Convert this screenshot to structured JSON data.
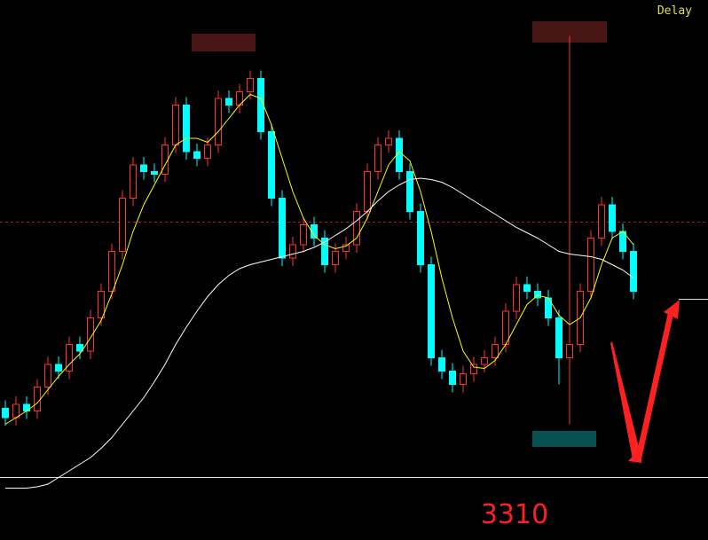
{
  "chart_data": {
    "type": "candlestick",
    "status": "Delay",
    "annotation": "3310",
    "ylim": [
      3263,
      3669
    ],
    "open": [
      3362,
      3355,
      3365,
      3360,
      3378,
      3395,
      3390,
      3410,
      3405,
      3430,
      3450,
      3480,
      3520,
      3545,
      3540,
      3538,
      3560,
      3590,
      3555,
      3550,
      3560,
      3595,
      3590,
      3600,
      3610,
      3570,
      3520,
      3475,
      3485,
      3500,
      3490,
      3470,
      3480,
      3485,
      3510,
      3540,
      3560,
      3565,
      3540,
      3510,
      3470,
      3400,
      3390,
      3380,
      3388,
      3395,
      3400,
      3410,
      3435,
      3455,
      3450,
      3445,
      3430,
      3400,
      3410,
      3450,
      3490,
      3515,
      3495,
      3480
    ],
    "close": [
      3355,
      3365,
      3360,
      3378,
      3395,
      3390,
      3410,
      3405,
      3430,
      3450,
      3480,
      3520,
      3545,
      3540,
      3538,
      3560,
      3590,
      3555,
      3550,
      3560,
      3595,
      3590,
      3600,
      3610,
      3570,
      3520,
      3475,
      3485,
      3500,
      3490,
      3470,
      3480,
      3485,
      3510,
      3540,
      3560,
      3565,
      3540,
      3510,
      3470,
      3400,
      3390,
      3380,
      3388,
      3395,
      3400,
      3410,
      3435,
      3455,
      3450,
      3445,
      3430,
      3400,
      3410,
      3450,
      3490,
      3515,
      3495,
      3480,
      3450
    ],
    "high": [
      3368,
      3371,
      3371,
      3384,
      3401,
      3401,
      3416,
      3416,
      3436,
      3456,
      3486,
      3526,
      3551,
      3551,
      3546,
      3566,
      3596,
      3596,
      3561,
      3566,
      3601,
      3601,
      3606,
      3616,
      3616,
      3576,
      3526,
      3491,
      3506,
      3506,
      3496,
      3486,
      3491,
      3516,
      3546,
      3566,
      3571,
      3571,
      3546,
      3516,
      3476,
      3406,
      3396,
      3394,
      3401,
      3406,
      3416,
      3441,
      3461,
      3461,
      3456,
      3451,
      3436,
      3642,
      3456,
      3496,
      3521,
      3521,
      3501,
      3486
    ],
    "low": [
      3349,
      3349,
      3354,
      3354,
      3372,
      3384,
      3384,
      3399,
      3399,
      3424,
      3444,
      3474,
      3514,
      3534,
      3532,
      3532,
      3554,
      3549,
      3544,
      3544,
      3554,
      3584,
      3584,
      3594,
      3564,
      3514,
      3469,
      3469,
      3479,
      3484,
      3464,
      3464,
      3474,
      3479,
      3504,
      3534,
      3554,
      3534,
      3504,
      3464,
      3394,
      3384,
      3374,
      3374,
      3382,
      3389,
      3394,
      3404,
      3429,
      3444,
      3439,
      3424,
      3380,
      3350,
      3404,
      3444,
      3484,
      3489,
      3474,
      3444
    ],
    "up_color": "#ff3232",
    "down_color": "#00ffff",
    "ma_lines": [
      {
        "color": "#ffff00",
        "values": [
          3350,
          3355,
          3360,
          3366,
          3376,
          3386,
          3395,
          3403,
          3415,
          3428,
          3448,
          3470,
          3495,
          3515,
          3530,
          3545,
          3560,
          3565,
          3565,
          3562,
          3570,
          3580,
          3590,
          3598,
          3595,
          3575,
          3550,
          3525,
          3505,
          3492,
          3485,
          3482,
          3484,
          3490,
          3505,
          3525,
          3545,
          3555,
          3548,
          3525,
          3495,
          3460,
          3430,
          3405,
          3393,
          3392,
          3398,
          3410,
          3425,
          3440,
          3447,
          3445,
          3432,
          3425,
          3430,
          3445,
          3470,
          3490,
          3495,
          3485
        ]
      },
      {
        "color": "#ffffff",
        "values": [
          3302,
          3302,
          3302,
          3303,
          3305,
          3310,
          3315,
          3320,
          3325,
          3332,
          3340,
          3350,
          3360,
          3370,
          3382,
          3395,
          3410,
          3423,
          3435,
          3446,
          3455,
          3462,
          3467,
          3470,
          3472,
          3474,
          3476,
          3478,
          3480,
          3483,
          3487,
          3492,
          3497,
          3503,
          3510,
          3518,
          3525,
          3530,
          3534,
          3535,
          3534,
          3532,
          3528,
          3523,
          3518,
          3513,
          3508,
          3503,
          3498,
          3494,
          3490,
          3485,
          3480,
          3478,
          3477,
          3476,
          3474,
          3470,
          3466,
          3460
        ]
      }
    ],
    "ref_level": 3502,
    "support_level": 3310,
    "right_level": 3444
  }
}
